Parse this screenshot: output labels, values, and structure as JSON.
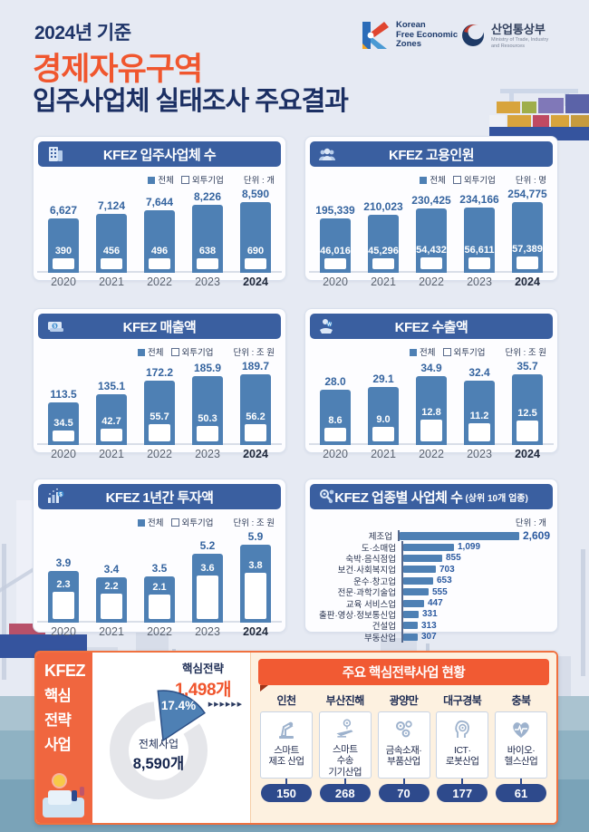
{
  "header": {
    "eyebrow": "2024년 기준",
    "title_line1": "경제자유구역",
    "title_line2": "입주사업체 실태조사 주요결과",
    "kfez_logo_text": "Korean\nFree Economic\nZones",
    "motie_logo_ko": "산업통상부",
    "motie_logo_en": "Ministry of Trade, Industry\nand Resources"
  },
  "legend": {
    "total": "전체",
    "foreign": "외투기업"
  },
  "colors": {
    "header_navy": "#3a5fa0",
    "bar_blue": "#4e80b4",
    "title_navy": "#1b2f63",
    "accent_orange": "#f0562e",
    "pill_navy": "#2e4a8c",
    "cream": "#fdf1e0",
    "sea": "#8fb2c3"
  },
  "chart_data": [
    {
      "type": "bar",
      "id": "tenants",
      "title": "KFEZ 입주사업체 수",
      "icon": "building-icon",
      "unit": "단위 : 개",
      "categories": [
        "2020",
        "2021",
        "2022",
        "2023",
        "2024"
      ],
      "series": [
        {
          "name": "전체",
          "values": [
            6627,
            7124,
            7644,
            8226,
            8590
          ],
          "labels": [
            "6,627",
            "7,124",
            "7,644",
            "8,226",
            "8,590"
          ]
        },
        {
          "name": "외투기업",
          "values": [
            390,
            456,
            496,
            638,
            690
          ],
          "labels": [
            "390",
            "456",
            "496",
            "638",
            "690"
          ]
        }
      ]
    },
    {
      "type": "bar",
      "id": "employment",
      "title": "KFEZ 고용인원",
      "icon": "people-icon",
      "unit": "단위 : 명",
      "categories": [
        "2020",
        "2021",
        "2022",
        "2023",
        "2024"
      ],
      "series": [
        {
          "name": "전체",
          "values": [
            195339,
            210023,
            230425,
            234166,
            254775
          ],
          "labels": [
            "195,339",
            "210,023",
            "230,425",
            "234,166",
            "254,775"
          ]
        },
        {
          "name": "외투기업",
          "values": [
            46016,
            45296,
            54432,
            56611,
            57389
          ],
          "labels": [
            "46,016",
            "45,296",
            "54,432",
            "56,611",
            "57,389"
          ]
        }
      ]
    },
    {
      "type": "bar",
      "id": "revenue",
      "title": "KFEZ 매출액",
      "icon": "money-icon",
      "unit": "단위 : 조 원",
      "categories": [
        "2020",
        "2021",
        "2022",
        "2023",
        "2024"
      ],
      "series": [
        {
          "name": "전체",
          "values": [
            113.5,
            135.1,
            172.2,
            185.9,
            189.7
          ],
          "labels": [
            "113.5",
            "135.1",
            "172.2",
            "185.9",
            "189.7"
          ]
        },
        {
          "name": "외투기업",
          "values": [
            34.5,
            42.7,
            55.7,
            50.3,
            56.2
          ],
          "labels": [
            "34.5",
            "42.7",
            "55.7",
            "50.3",
            "56.2"
          ]
        }
      ]
    },
    {
      "type": "bar",
      "id": "exports",
      "title": "KFEZ 수출액",
      "icon": "hand-coin-icon",
      "unit": "단위 : 조 원",
      "categories": [
        "2020",
        "2021",
        "2022",
        "2023",
        "2024"
      ],
      "series": [
        {
          "name": "전체",
          "values": [
            28.0,
            29.1,
            34.9,
            32.4,
            35.7
          ],
          "labels": [
            "28.0",
            "29.1",
            "34.9",
            "32.4",
            "35.7"
          ]
        },
        {
          "name": "외투기업",
          "values": [
            8.6,
            9.0,
            12.8,
            11.2,
            12.5
          ],
          "labels": [
            "8.6",
            "9.0",
            "12.8",
            "11.2",
            "12.5"
          ]
        }
      ]
    },
    {
      "type": "bar",
      "id": "investment",
      "title": "KFEZ 1년간 투자액",
      "icon": "invest-icon",
      "unit": "단위 : 조 원",
      "categories": [
        "2020",
        "2021",
        "2022",
        "2023",
        "2024"
      ],
      "series": [
        {
          "name": "전체",
          "values": [
            3.9,
            3.4,
            3.5,
            5.2,
            5.9
          ],
          "labels": [
            "3.9",
            "3.4",
            "3.5",
            "5.2",
            "5.9"
          ]
        },
        {
          "name": "외투기업",
          "values": [
            2.3,
            2.2,
            2.1,
            3.6,
            3.8
          ],
          "labels": [
            "2.3",
            "2.2",
            "2.1",
            "3.6",
            "3.8"
          ]
        }
      ]
    },
    {
      "type": "hbar",
      "id": "industry",
      "title": "KFEZ 업종별 사업체 수",
      "title_suffix": "(상위 10개 업종)",
      "icon": "gear-search-icon",
      "unit": "단위 : 개",
      "rows": [
        {
          "label": "제조업",
          "value": 2609,
          "value_label": "2,609"
        },
        {
          "label": "도·소매업",
          "value": 1099,
          "value_label": "1,099"
        },
        {
          "label": "숙박·음식점업",
          "value": 855,
          "value_label": "855"
        },
        {
          "label": "보건·사회복지업",
          "value": 703,
          "value_label": "703"
        },
        {
          "label": "운수·창고업",
          "value": 653,
          "value_label": "653"
        },
        {
          "label": "전문·과학기술업",
          "value": 555,
          "value_label": "555"
        },
        {
          "label": "교육 서비스업",
          "value": 447,
          "value_label": "447"
        },
        {
          "label": "출판·영상·정보통신업",
          "value": 331,
          "value_label": "331"
        },
        {
          "label": "건설업",
          "value": 313,
          "value_label": "313"
        },
        {
          "label": "부동산업",
          "value": 307,
          "value_label": "307"
        }
      ]
    },
    {
      "type": "pie",
      "id": "strategy-share",
      "slice_title": "핵심전략",
      "slice_value_label": "1,498개",
      "slice_pct_label": "17.4%",
      "pct": 17.4,
      "arrows": "▶▶▶▶▶▶",
      "center_title": "전체사업",
      "center_value_label": "8,590개",
      "values": [
        1498,
        7092
      ],
      "total": 8590
    }
  ],
  "strategy": {
    "sidebar_lines": [
      "KFEZ",
      "핵심",
      "전략",
      "사업"
    ],
    "panel_title": "주요 핵심전략사업 현황",
    "regions": [
      {
        "name": "인천",
        "industry": "스마트\n제조 산업",
        "count": "150",
        "icon": "robot-arm-icon"
      },
      {
        "name": "부산진해",
        "industry": "스마트\n수송\n기기산업",
        "count": "268",
        "icon": "transport-icon"
      },
      {
        "name": "광양만",
        "industry": "금속소재·\n부품산업",
        "count": "70",
        "icon": "gears-icon"
      },
      {
        "name": "대구경북",
        "industry": "ICT·\n로봇산업",
        "count": "177",
        "icon": "robot-head-icon"
      },
      {
        "name": "충북",
        "industry": "바이오·\n헬스산업",
        "count": "61",
        "icon": "heart-pulse-icon"
      }
    ]
  }
}
